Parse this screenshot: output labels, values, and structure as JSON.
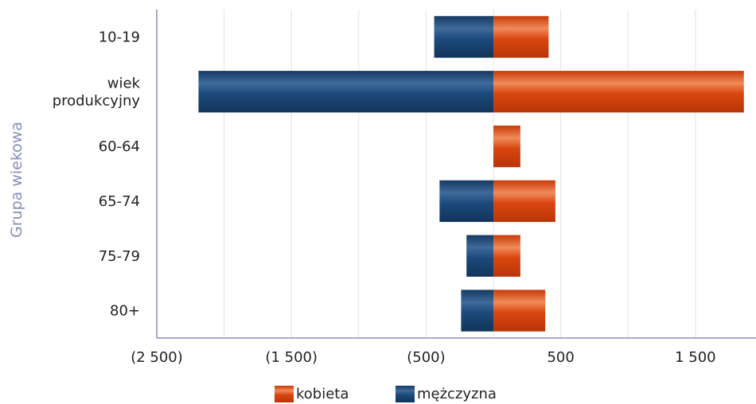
{
  "chart_data": {
    "type": "bar",
    "orientation": "horizontal",
    "stacked": true,
    "ylabel": "Grupa wiekowa",
    "xlabel": "",
    "title": "",
    "categories": [
      [
        "10-19"
      ],
      [
        "wiek",
        "produkcyjny"
      ],
      [
        "60-64"
      ],
      [
        "65-74"
      ],
      [
        "75-79"
      ],
      [
        "80+"
      ]
    ],
    "series": [
      {
        "name": "kobieta",
        "color": "#d9460f",
        "values": [
          410,
          1860,
          200,
          460,
          200,
          385
        ]
      },
      {
        "name": "mężczyzna",
        "color": "#1c4a7c",
        "values": [
          -440,
          -2190,
          0,
          -400,
          -200,
          -240
        ]
      }
    ],
    "xlim": [
      -2500,
      1950
    ],
    "xticks": [
      -2500,
      -2000,
      -1500,
      -1000,
      -500,
      0,
      500,
      1000,
      1500
    ],
    "xtick_labels": [
      {
        "value": -2500,
        "label": "(2 500)"
      },
      {
        "value": -1500,
        "label": "(1 500)"
      },
      {
        "value": -500,
        "label": "(500)"
      },
      {
        "value": 500,
        "label": "500"
      },
      {
        "value": 1500,
        "label": "1 500"
      }
    ],
    "grid": true,
    "legend": {
      "position": "bottom",
      "items": [
        "kobieta",
        "mężczyzna"
      ]
    }
  }
}
